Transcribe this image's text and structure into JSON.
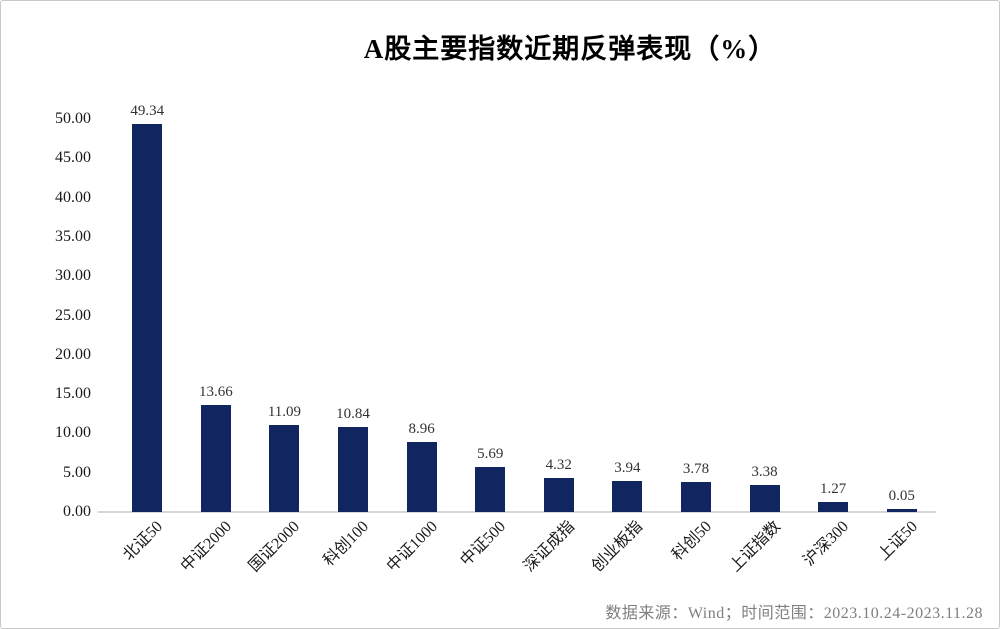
{
  "title": "A股主要指数近期反弹表现（%）",
  "source_note": "数据来源：Wind；时间范围：2023.10.24-2023.11.28",
  "colors": {
    "bar": "#112661",
    "axis_line": "#d6d6d6",
    "tick_text": "#1a1a1a",
    "data_label_text": "#333333",
    "source_text": "#7f7f7f",
    "background": "#ffffff",
    "frame_border": "#c9c9c9"
  },
  "chart_data": {
    "type": "bar",
    "title": "A股主要指数近期反弹表现（%）",
    "categories": [
      "北证50",
      "中证2000",
      "国证2000",
      "科创100",
      "中证1000",
      "中证500",
      "深证成指",
      "创业板指",
      "科创50",
      "上证指数",
      "沪深300",
      "上证50"
    ],
    "values": [
      49.34,
      13.66,
      11.09,
      10.84,
      8.96,
      5.69,
      4.32,
      3.94,
      3.78,
      3.38,
      1.27,
      0.05
    ],
    "data_labels": [
      "49.34",
      "13.66",
      "11.09",
      "10.84",
      "8.96",
      "5.69",
      "4.32",
      "3.94",
      "3.78",
      "3.38",
      "1.27",
      "0.05"
    ],
    "xlabel": "",
    "ylabel": "",
    "ylim": [
      0,
      50
    ],
    "ytick_step": 5,
    "ytick_labels": [
      "0.00",
      "5.00",
      "10.00",
      "15.00",
      "20.00",
      "25.00",
      "30.00",
      "35.00",
      "40.00",
      "45.00",
      "50.00"
    ],
    "grid": false,
    "legend": "none",
    "x_label_rotation_deg": -45,
    "bar_color": "#112661",
    "source_note": "数据来源：Wind；时间范围：2023.10.24-2023.11.28"
  }
}
